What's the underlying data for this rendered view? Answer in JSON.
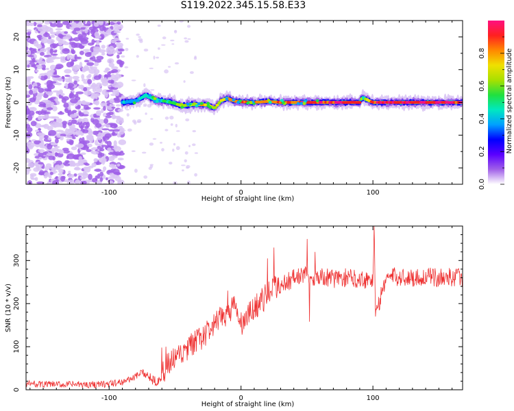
{
  "figure_title": "S119.2022.345.15.58.E33",
  "chart_data": [
    {
      "type": "heatmap",
      "title": "",
      "xlabel": "Height of straight line (km)",
      "ylabel": "Frequency (Hz)",
      "xlim": [
        -163,
        168
      ],
      "ylim": [
        -25,
        25
      ],
      "xticks": [
        -100,
        0,
        100
      ],
      "yticks": [
        -20,
        -10,
        0,
        10,
        20
      ],
      "colorbar": {
        "label": "Normalized spectral amplitude",
        "range": [
          0,
          1
        ],
        "ticks": [
          0.0,
          0.2,
          0.4,
          0.6,
          0.8
        ],
        "colors": [
          "#d9c4f4",
          "#a060e8",
          "#5a00ff",
          "#0000ff",
          "#00a0ff",
          "#00e8c0",
          "#20e040",
          "#a8e000",
          "#f0e000",
          "#ff8800",
          "#ff2020",
          "#ff1080"
        ]
      },
      "noise_region_x": [
        -163,
        -90
      ],
      "signal_trace": {
        "x": [
          -90,
          -80,
          -72,
          -65,
          -55,
          -45,
          -35,
          -25,
          -20,
          -15,
          -10,
          -5,
          0,
          10,
          20,
          30,
          40,
          50,
          60,
          70,
          80,
          90,
          92,
          100,
          110,
          120,
          130,
          140,
          150,
          160,
          168
        ],
        "freq_hz": [
          0.0,
          0.4,
          2.2,
          0.8,
          0.2,
          -1.0,
          -0.6,
          -0.8,
          -1.8,
          0.6,
          1.2,
          0.4,
          0.2,
          0.0,
          0.3,
          0.0,
          0.0,
          0.0,
          0.0,
          0.0,
          0.0,
          0.0,
          1.5,
          0.0,
          0.0,
          0.0,
          0.0,
          0.0,
          0.0,
          0.0,
          0.0
        ],
        "amplitude": [
          0.45,
          0.4,
          0.55,
          0.45,
          0.55,
          0.7,
          0.75,
          0.8,
          0.7,
          0.75,
          0.8,
          0.85,
          0.9,
          0.9,
          0.85,
          0.9,
          0.92,
          0.95,
          0.97,
          0.97,
          0.97,
          0.95,
          0.5,
          0.97,
          0.97,
          0.97,
          0.97,
          0.97,
          0.97,
          0.97,
          0.97
        ]
      }
    },
    {
      "type": "line",
      "title": "",
      "xlabel": "Height of straight line (km)",
      "ylabel": "SNR (10 * v/v)",
      "xlim": [
        -163,
        168
      ],
      "ylim": [
        0,
        380
      ],
      "xticks": [
        -100,
        0,
        100
      ],
      "yticks": [
        0,
        100,
        200,
        300
      ],
      "series": [
        {
          "color": "#ee3030",
          "x": [
            -163,
            -140,
            -120,
            -100,
            -90,
            -80,
            -75,
            -70,
            -65,
            -60,
            -55,
            -50,
            -45,
            -40,
            -35,
            -30,
            -25,
            -20,
            -15,
            -10,
            -5,
            0,
            5,
            10,
            15,
            20,
            25,
            30,
            35,
            40,
            45,
            50,
            55,
            60,
            65,
            70,
            80,
            90,
            100,
            101,
            102,
            110,
            120,
            130,
            140,
            150,
            160,
            168
          ],
          "values": [
            14,
            12,
            12,
            13,
            18,
            30,
            40,
            32,
            22,
            30,
            60,
            70,
            80,
            95,
            110,
            120,
            135,
            150,
            165,
            180,
            195,
            150,
            170,
            190,
            205,
            220,
            235,
            245,
            250,
            260,
            265,
            265,
            262,
            262,
            260,
            258,
            260,
            258,
            255,
            380,
            170,
            262,
            262,
            260,
            262,
            260,
            262,
            260
          ]
        }
      ],
      "spikes": [
        {
          "x": -60,
          "value": 98
        },
        {
          "x": -57,
          "value": 100
        },
        {
          "x": -10,
          "value": 230
        },
        {
          "x": 20,
          "value": 305
        },
        {
          "x": 25,
          "value": 330
        },
        {
          "x": 50,
          "value": 350
        },
        {
          "x": 52,
          "value": 158
        },
        {
          "x": 56,
          "value": 320
        },
        {
          "x": 101,
          "value": 380
        },
        {
          "x": 102,
          "value": 170
        }
      ]
    }
  ]
}
